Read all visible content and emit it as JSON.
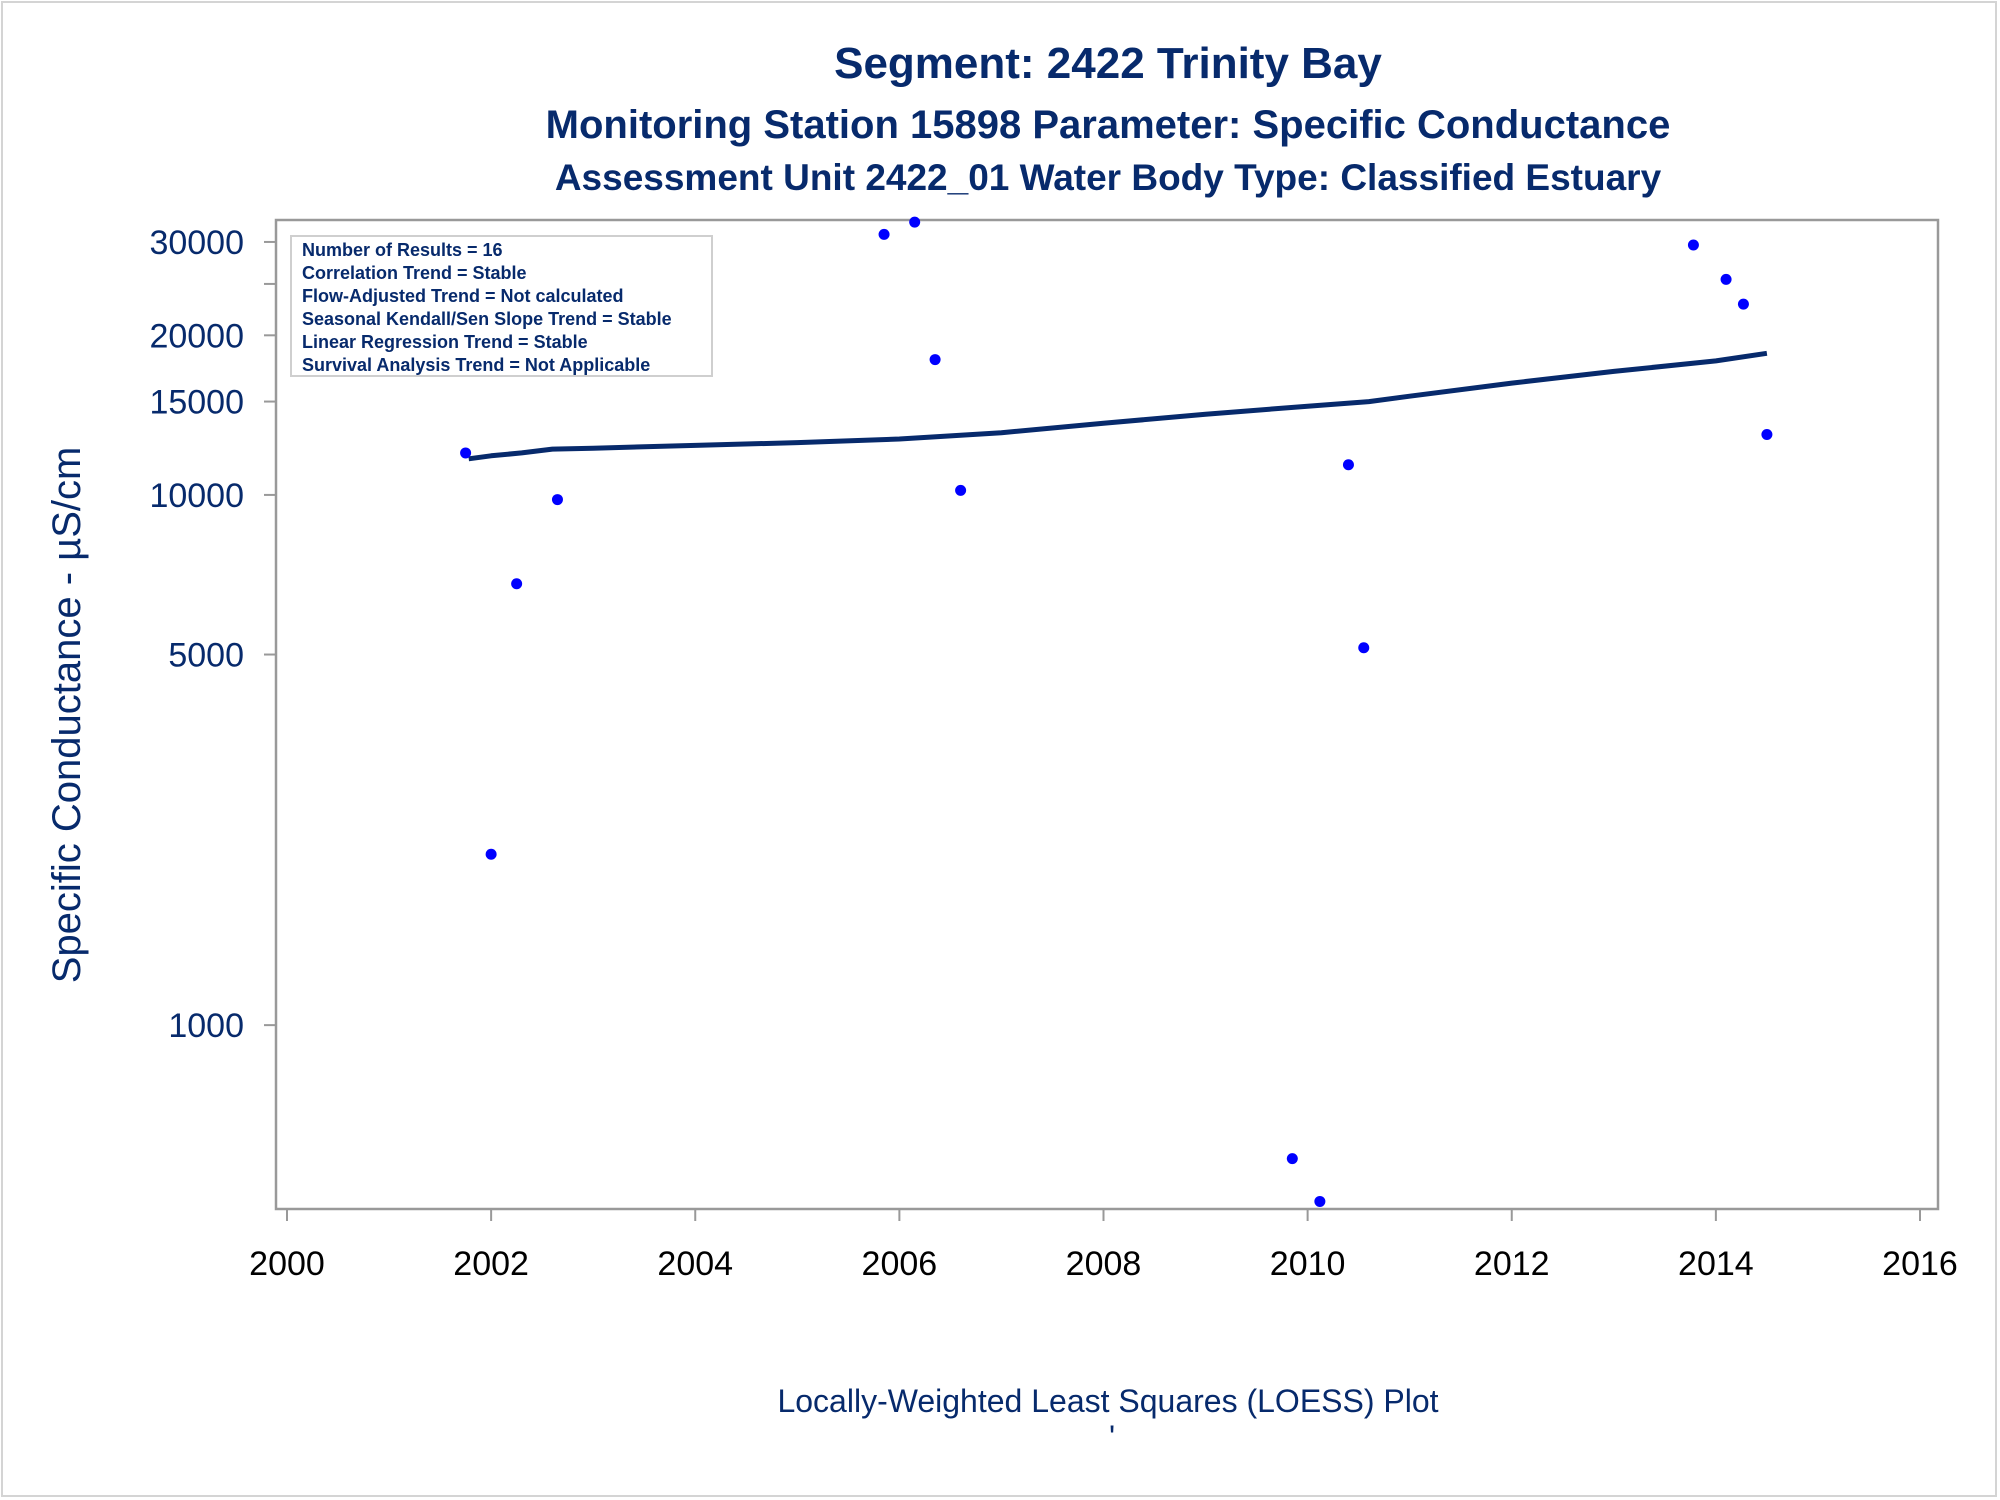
{
  "chart_data": {
    "type": "scatter",
    "title": "Segment: 2422  Trinity Bay",
    "subtitle1": "Monitoring Station 15898 Parameter: Specific Conductance",
    "subtitle2": "Assessment Unit 2422_01   Water Body Type: Classified Estuary",
    "ylabel": "Specific Conductance -  µS/cm",
    "xlabel": "",
    "footnote": "Locally-Weighted Least Squares (LOESS) Plot",
    "footnote_mark": "'",
    "y_scale": "log",
    "xlim": [
      2000,
      2016
    ],
    "ylim": [
      450,
      33000
    ],
    "x_ticks": [
      2000,
      2002,
      2004,
      2006,
      2008,
      2010,
      2012,
      2014,
      2016
    ],
    "y_ticks": [
      1000,
      5000,
      10000,
      15000,
      20000,
      30000
    ],
    "y_minor_ticks": [
      25000
    ],
    "grid": false,
    "legend_position": "top-left",
    "legend_lines": [
      "Number of Results = 16",
      "Correlation Trend = Stable",
      "Flow-Adjusted Trend = Not calculated",
      "Seasonal Kendall/Sen Slope Trend = Stable",
      "Linear Regression Trend = Stable",
      "Survival Analysis Trend = Not Applicable"
    ],
    "series": [
      {
        "kind": "points",
        "color": "#0000ff",
        "x": [
          2001.75,
          2002.0,
          2002.25,
          2002.65,
          2005.85,
          2006.15,
          2006.35,
          2006.6,
          2009.85,
          2010.12,
          2010.4,
          2010.55,
          2013.78,
          2014.1,
          2014.27,
          2014.5
        ],
        "y": [
          12000,
          2100,
          6800,
          9800,
          31000,
          32700,
          18000,
          10200,
          560,
          465,
          11400,
          5150,
          29600,
          25500,
          22900,
          13000
        ]
      },
      {
        "kind": "loess-line",
        "color": "#072a6c",
        "x": [
          2001.78,
          2002.0,
          2002.3,
          2002.6,
          2003.0,
          2004.0,
          2005.0,
          2006.0,
          2007.0,
          2008.0,
          2009.0,
          2010.0,
          2010.6,
          2011.0,
          2012.0,
          2013.0,
          2014.0,
          2014.5
        ],
        "y": [
          11700,
          11850,
          12000,
          12200,
          12250,
          12400,
          12550,
          12750,
          13100,
          13650,
          14200,
          14700,
          15000,
          15350,
          16250,
          17100,
          17900,
          18500
        ]
      }
    ]
  }
}
